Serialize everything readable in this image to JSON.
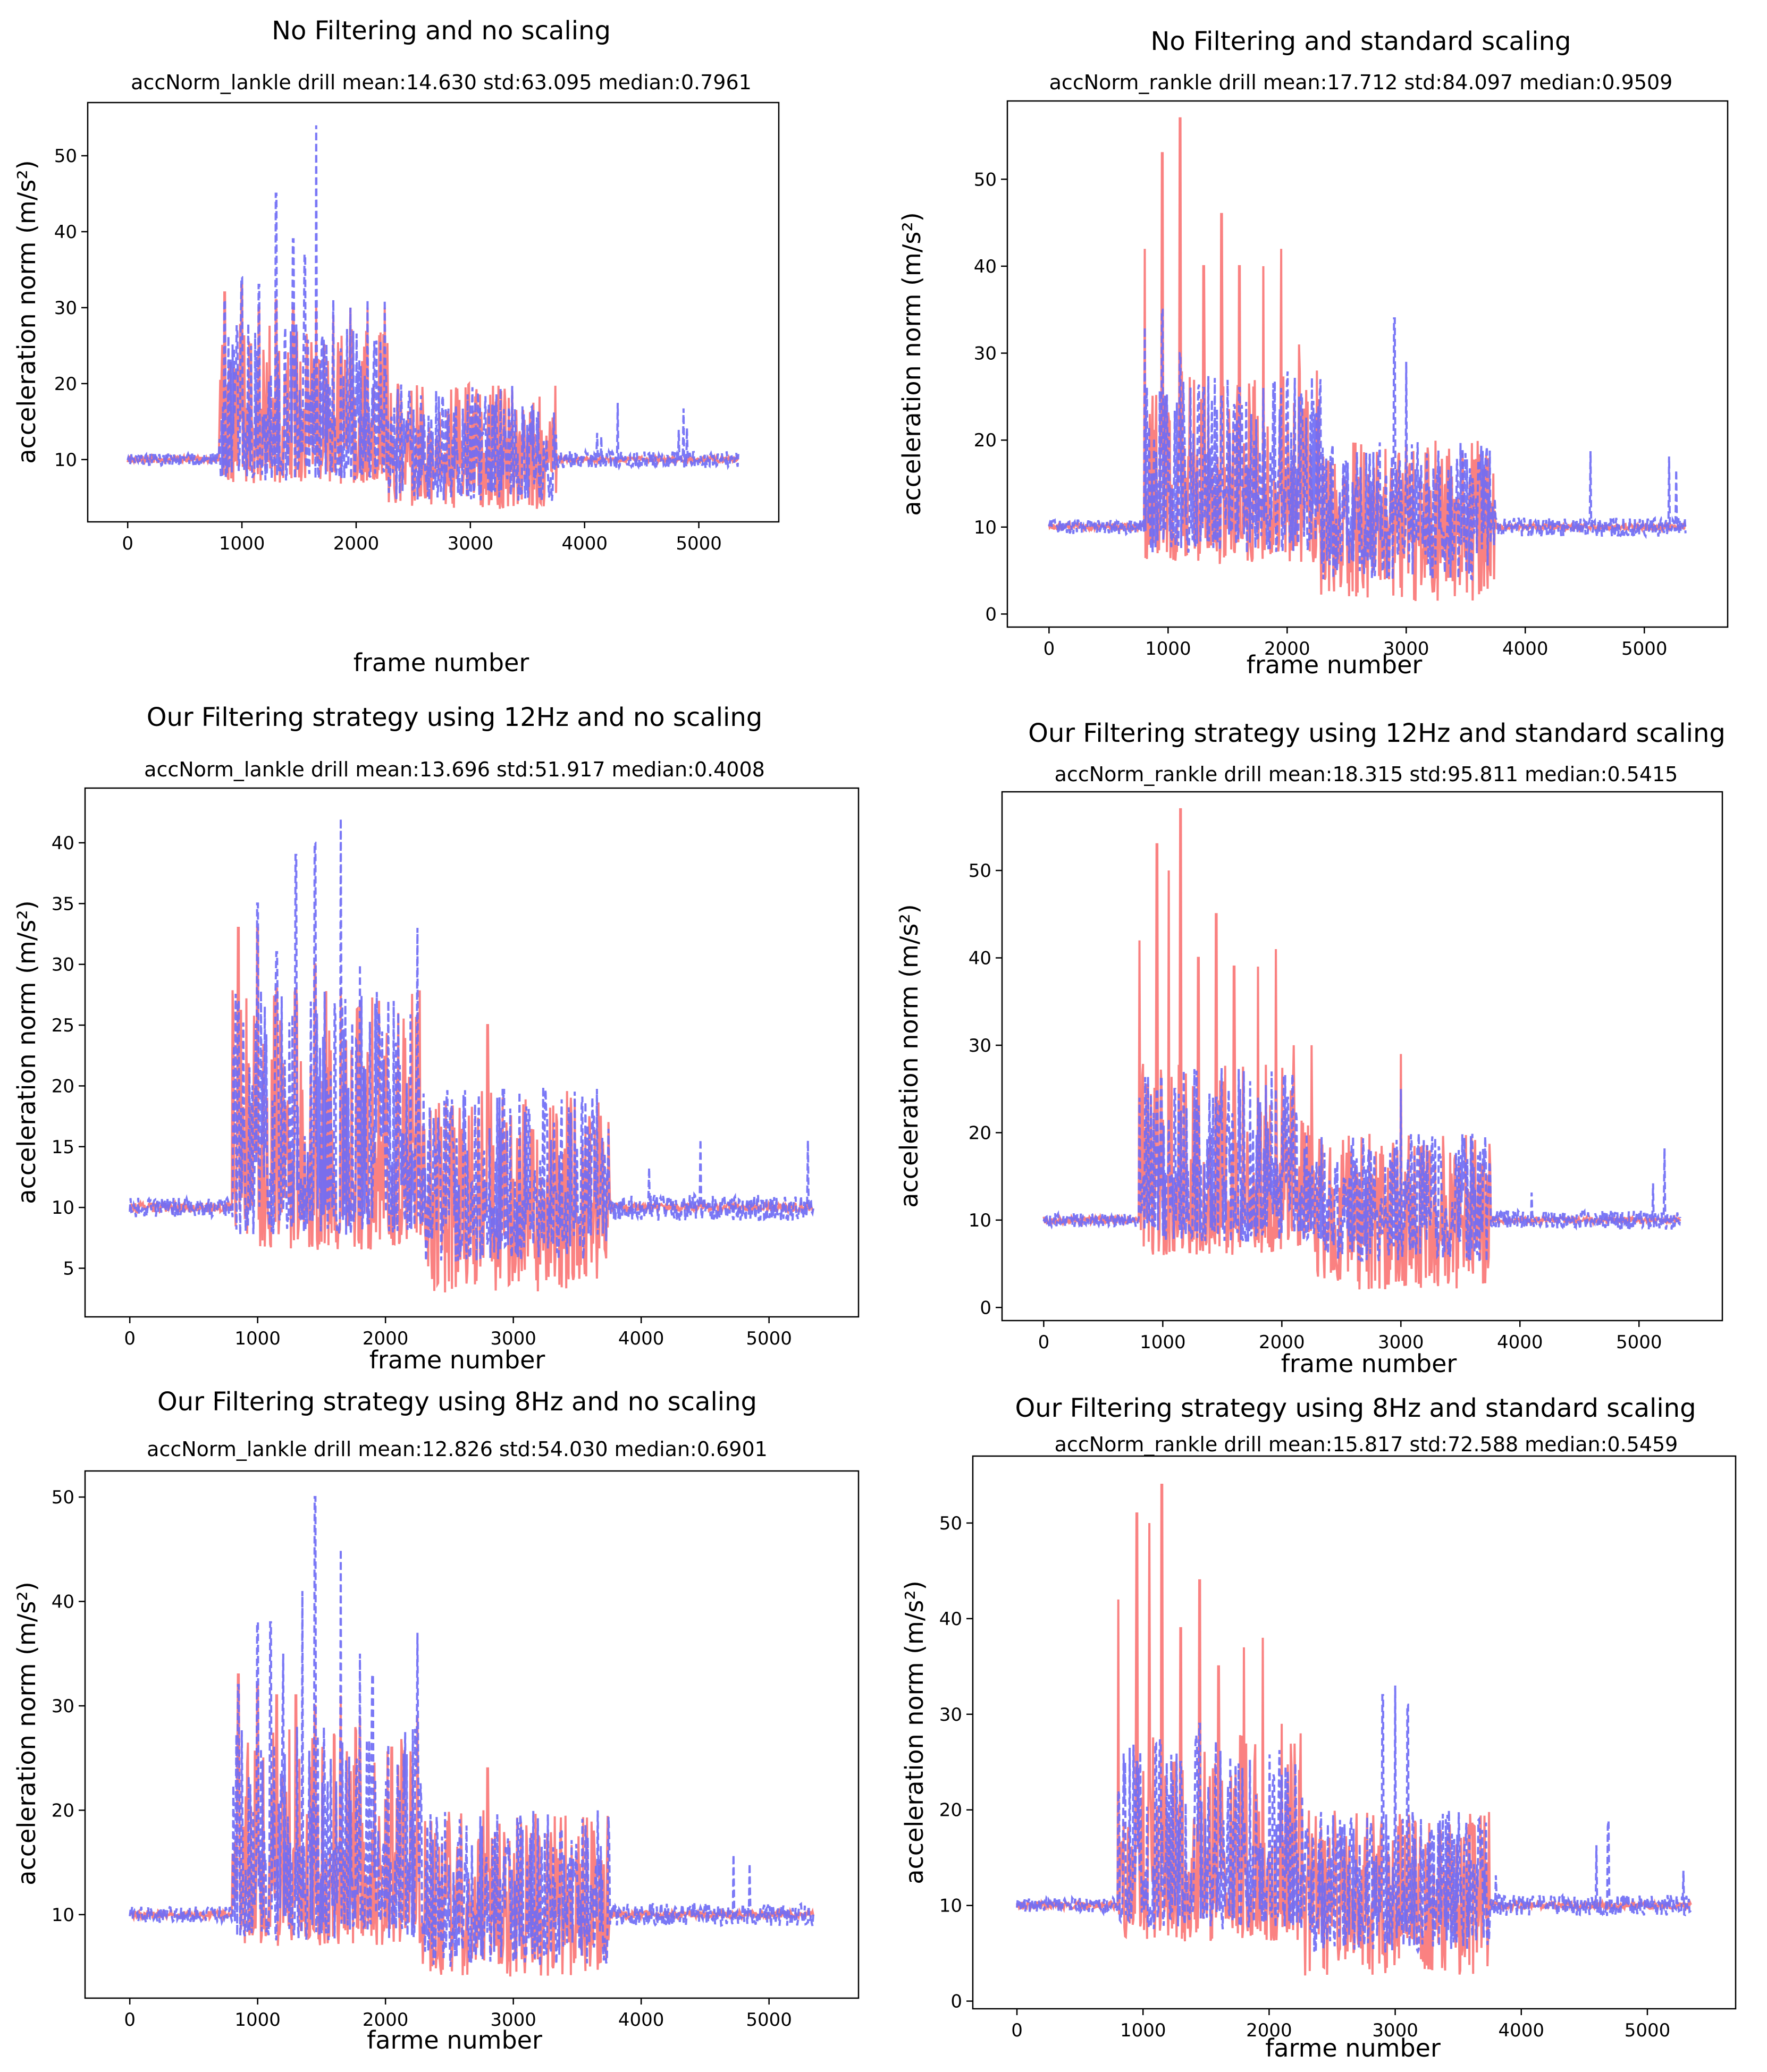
{
  "chart_data": [
    {
      "type": "line",
      "title": "No Filtering and no scaling",
      "subtitle": "accNorm_lankle drill mean:14.630 std:63.095 median:0.7961",
      "xlabel": "frame number",
      "ylabel": "acceleration norm (m/s²)",
      "xlim": [
        -350,
        5700
      ],
      "ylim": [
        1.8,
        57
      ],
      "xticks": [
        0,
        1000,
        2000,
        3000,
        4000,
        5000
      ],
      "yticks": [
        10,
        20,
        30,
        40,
        50
      ],
      "series": [
        {
          "name": "red-solid",
          "color": "#fa7676",
          "style": "solid",
          "baseline": 10,
          "active_range": [
            800,
            3750
          ],
          "tail_range": [
            3750,
            5350
          ],
          "noise_min": 3.5
        },
        {
          "name": "blue-dashed",
          "color": "#6f6cf5",
          "style": "dashed",
          "baseline": 10,
          "active_range": [
            800,
            3750
          ],
          "tail_range": [
            3750,
            5350
          ],
          "noise_min": 4.5
        }
      ],
      "red_peaks": [
        {
          "x": 850,
          "y": 32
        },
        {
          "x": 1000,
          "y": 33
        },
        {
          "x": 1150,
          "y": 30
        },
        {
          "x": 1300,
          "y": 31
        },
        {
          "x": 1450,
          "y": 30
        },
        {
          "x": 1650,
          "y": 30
        },
        {
          "x": 1800,
          "y": 29
        },
        {
          "x": 1950,
          "y": 30
        },
        {
          "x": 2100,
          "y": 30
        },
        {
          "x": 2250,
          "y": 30
        }
      ],
      "blue_peaks": [
        {
          "x": 850,
          "y": 31
        },
        {
          "x": 1000,
          "y": 34
        },
        {
          "x": 1150,
          "y": 33
        },
        {
          "x": 1300,
          "y": 45
        },
        {
          "x": 1450,
          "y": 39
        },
        {
          "x": 1550,
          "y": 37
        },
        {
          "x": 1650,
          "y": 54
        },
        {
          "x": 1800,
          "y": 31
        },
        {
          "x": 1950,
          "y": 30
        },
        {
          "x": 2100,
          "y": 31
        },
        {
          "x": 2250,
          "y": 31
        }
      ]
    },
    {
      "type": "line",
      "title": "No Filtering and standard scaling",
      "subtitle": "accNorm_rankle drill mean:17.712 std:84.097 median:0.9509",
      "xlabel": "frame number",
      "ylabel": "acceleration norm (m/s²)",
      "xlim": [
        -350,
        5700
      ],
      "ylim": [
        -1.5,
        59
      ],
      "xticks": [
        0,
        1000,
        2000,
        3000,
        4000,
        5000
      ],
      "yticks": [
        0,
        10,
        20,
        30,
        40,
        50
      ],
      "series": [
        {
          "name": "red-solid",
          "color": "#fa7676",
          "style": "solid",
          "baseline": 10,
          "active_range": [
            800,
            3750
          ],
          "tail_range": [
            3750,
            5350
          ],
          "noise_min": 1.5
        },
        {
          "name": "blue-dashed",
          "color": "#6f6cf5",
          "style": "dashed",
          "baseline": 10,
          "active_range": [
            800,
            3750
          ],
          "tail_range": [
            3750,
            5350
          ],
          "noise_min": 4
        }
      ],
      "red_peaks": [
        {
          "x": 800,
          "y": 42
        },
        {
          "x": 950,
          "y": 53
        },
        {
          "x": 1100,
          "y": 57
        },
        {
          "x": 1300,
          "y": 40
        },
        {
          "x": 1450,
          "y": 46
        },
        {
          "x": 1600,
          "y": 40
        },
        {
          "x": 1800,
          "y": 40
        },
        {
          "x": 1950,
          "y": 42
        },
        {
          "x": 2100,
          "y": 31
        },
        {
          "x": 2250,
          "y": 28
        }
      ],
      "blue_peaks": [
        {
          "x": 800,
          "y": 33
        },
        {
          "x": 950,
          "y": 35
        },
        {
          "x": 1100,
          "y": 30
        },
        {
          "x": 1300,
          "y": 26
        },
        {
          "x": 1450,
          "y": 25
        },
        {
          "x": 1600,
          "y": 26
        },
        {
          "x": 1800,
          "y": 26
        },
        {
          "x": 1950,
          "y": 26
        },
        {
          "x": 2100,
          "y": 25
        },
        {
          "x": 2900,
          "y": 34
        },
        {
          "x": 3000,
          "y": 29
        }
      ]
    },
    {
      "type": "line",
      "title": "Our Filtering strategy using 12Hz and no scaling",
      "subtitle": "accNorm_lankle drill mean:13.696 std:51.917 median:0.4008",
      "xlabel": "frame number",
      "ylabel": "acceleration norm (m/s²)",
      "xlim": [
        -350,
        5700
      ],
      "ylim": [
        1,
        44.5
      ],
      "xticks": [
        0,
        1000,
        2000,
        3000,
        4000,
        5000
      ],
      "yticks": [
        5,
        10,
        15,
        20,
        25,
        30,
        35,
        40
      ],
      "series": [
        {
          "name": "red-solid",
          "color": "#fa7676",
          "style": "solid",
          "baseline": 10,
          "active_range": [
            800,
            3750
          ],
          "tail_range": [
            3750,
            5350
          ],
          "noise_min": 3
        },
        {
          "name": "blue-dashed",
          "color": "#6f6cf5",
          "style": "dashed",
          "baseline": 10,
          "active_range": [
            800,
            3750
          ],
          "tail_range": [
            3750,
            5350
          ],
          "noise_min": 5.5
        }
      ],
      "red_peaks": [
        {
          "x": 850,
          "y": 33
        },
        {
          "x": 1000,
          "y": 33
        },
        {
          "x": 1150,
          "y": 28
        },
        {
          "x": 1300,
          "y": 28
        },
        {
          "x": 1450,
          "y": 30
        },
        {
          "x": 1650,
          "y": 28
        },
        {
          "x": 1800,
          "y": 27
        },
        {
          "x": 1950,
          "y": 27
        },
        {
          "x": 2100,
          "y": 26
        },
        {
          "x": 2250,
          "y": 26
        },
        {
          "x": 2800,
          "y": 25
        }
      ],
      "blue_peaks": [
        {
          "x": 850,
          "y": 27
        },
        {
          "x": 1000,
          "y": 35
        },
        {
          "x": 1150,
          "y": 31
        },
        {
          "x": 1300,
          "y": 39
        },
        {
          "x": 1450,
          "y": 40
        },
        {
          "x": 1650,
          "y": 42
        },
        {
          "x": 1800,
          "y": 30
        },
        {
          "x": 1950,
          "y": 26
        },
        {
          "x": 2100,
          "y": 26
        },
        {
          "x": 2250,
          "y": 33
        }
      ]
    },
    {
      "type": "line",
      "title": "Our Filtering strategy using 12Hz and standard scaling",
      "subtitle": "accNorm_rankle drill mean:18.315 std:95.811 median:0.5415",
      "xlabel": "frame number",
      "ylabel": "acceleration norm (m/s²)",
      "xlim": [
        -350,
        5700
      ],
      "ylim": [
        -1.5,
        59
      ],
      "xticks": [
        0,
        1000,
        2000,
        3000,
        4000,
        5000
      ],
      "yticks": [
        0,
        10,
        20,
        30,
        40,
        50
      ],
      "series": [
        {
          "name": "red-solid",
          "color": "#fa7676",
          "style": "solid",
          "baseline": 10,
          "active_range": [
            800,
            3750
          ],
          "tail_range": [
            3750,
            5350
          ],
          "noise_min": 2
        },
        {
          "name": "blue-dashed",
          "color": "#6f6cf5",
          "style": "dashed",
          "baseline": 10,
          "active_range": [
            800,
            3750
          ],
          "tail_range": [
            3750,
            5350
          ],
          "noise_min": 5
        }
      ],
      "red_peaks": [
        {
          "x": 800,
          "y": 42
        },
        {
          "x": 950,
          "y": 53
        },
        {
          "x": 1050,
          "y": 50
        },
        {
          "x": 1150,
          "y": 57
        },
        {
          "x": 1300,
          "y": 40
        },
        {
          "x": 1450,
          "y": 45
        },
        {
          "x": 1600,
          "y": 39
        },
        {
          "x": 1800,
          "y": 39
        },
        {
          "x": 1950,
          "y": 41
        },
        {
          "x": 2100,
          "y": 30
        },
        {
          "x": 2250,
          "y": 30
        },
        {
          "x": 3000,
          "y": 29
        }
      ],
      "blue_peaks": [
        {
          "x": 800,
          "y": 24
        },
        {
          "x": 950,
          "y": 25
        },
        {
          "x": 1100,
          "y": 25
        },
        {
          "x": 1300,
          "y": 23
        },
        {
          "x": 1450,
          "y": 24
        },
        {
          "x": 1650,
          "y": 25
        },
        {
          "x": 1800,
          "y": 24
        },
        {
          "x": 1950,
          "y": 25
        },
        {
          "x": 2050,
          "y": 24
        },
        {
          "x": 3000,
          "y": 25
        }
      ]
    },
    {
      "type": "line",
      "title": "Our Filtering strategy using 8Hz and no scaling",
      "subtitle": "accNorm_lankle drill mean:12.826 std:54.030 median:0.6901",
      "xlabel": "farme number",
      "ylabel": "acceleration norm (m/s²)",
      "xlim": [
        -350,
        5700
      ],
      "ylim": [
        2,
        52.5
      ],
      "xticks": [
        0,
        1000,
        2000,
        3000,
        4000,
        5000
      ],
      "yticks": [
        10,
        20,
        30,
        40,
        50
      ],
      "series": [
        {
          "name": "red-solid",
          "color": "#fa7676",
          "style": "solid",
          "baseline": 10,
          "active_range": [
            800,
            3750
          ],
          "tail_range": [
            3750,
            5350
          ],
          "noise_min": 4
        },
        {
          "name": "blue-dashed",
          "color": "#6f6cf5",
          "style": "dashed",
          "baseline": 10,
          "active_range": [
            800,
            3750
          ],
          "tail_range": [
            3750,
            5350
          ],
          "noise_min": 5
        }
      ],
      "red_peaks": [
        {
          "x": 850,
          "y": 33
        },
        {
          "x": 1000,
          "y": 32
        },
        {
          "x": 1150,
          "y": 31
        },
        {
          "x": 1300,
          "y": 31
        },
        {
          "x": 1450,
          "y": 30
        },
        {
          "x": 1650,
          "y": 31
        },
        {
          "x": 1800,
          "y": 29
        },
        {
          "x": 2050,
          "y": 26
        },
        {
          "x": 2250,
          "y": 29
        },
        {
          "x": 2800,
          "y": 24
        }
      ],
      "blue_peaks": [
        {
          "x": 850,
          "y": 32
        },
        {
          "x": 1000,
          "y": 38
        },
        {
          "x": 1100,
          "y": 38
        },
        {
          "x": 1200,
          "y": 35
        },
        {
          "x": 1350,
          "y": 41
        },
        {
          "x": 1450,
          "y": 50
        },
        {
          "x": 1650,
          "y": 45
        },
        {
          "x": 1800,
          "y": 35
        },
        {
          "x": 1900,
          "y": 33
        },
        {
          "x": 2250,
          "y": 37
        }
      ]
    },
    {
      "type": "line",
      "title": "Our Filtering strategy using 8Hz and standard scaling",
      "subtitle": "accNorm_rankle drill mean:15.817 std:72.588 median:0.5459",
      "xlabel": "farme number",
      "ylabel": "acceleration norm (m/s²)",
      "xlim": [
        -350,
        5700
      ],
      "ylim": [
        -0.8,
        57
      ],
      "xticks": [
        0,
        1000,
        2000,
        3000,
        4000,
        5000
      ],
      "yticks": [
        0,
        10,
        20,
        30,
        40,
        50
      ],
      "series": [
        {
          "name": "red-solid",
          "color": "#fa7676",
          "style": "solid",
          "baseline": 10,
          "active_range": [
            800,
            3750
          ],
          "tail_range": [
            3750,
            5350
          ],
          "noise_min": 2.5
        },
        {
          "name": "blue-dashed",
          "color": "#6f6cf5",
          "style": "dashed",
          "baseline": 10,
          "active_range": [
            800,
            3750
          ],
          "tail_range": [
            3750,
            5350
          ],
          "noise_min": 5
        }
      ],
      "red_peaks": [
        {
          "x": 800,
          "y": 42
        },
        {
          "x": 950,
          "y": 51
        },
        {
          "x": 1050,
          "y": 50
        },
        {
          "x": 1150,
          "y": 54
        },
        {
          "x": 1300,
          "y": 39
        },
        {
          "x": 1450,
          "y": 44
        },
        {
          "x": 1600,
          "y": 35
        },
        {
          "x": 1800,
          "y": 37
        },
        {
          "x": 1950,
          "y": 38
        },
        {
          "x": 2100,
          "y": 29
        },
        {
          "x": 2250,
          "y": 28
        }
      ],
      "blue_peaks": [
        {
          "x": 800,
          "y": 22
        },
        {
          "x": 950,
          "y": 25
        },
        {
          "x": 1100,
          "y": 27
        },
        {
          "x": 1300,
          "y": 25
        },
        {
          "x": 1450,
          "y": 29
        },
        {
          "x": 2900,
          "y": 32
        },
        {
          "x": 3000,
          "y": 33
        },
        {
          "x": 3100,
          "y": 31
        }
      ]
    }
  ]
}
